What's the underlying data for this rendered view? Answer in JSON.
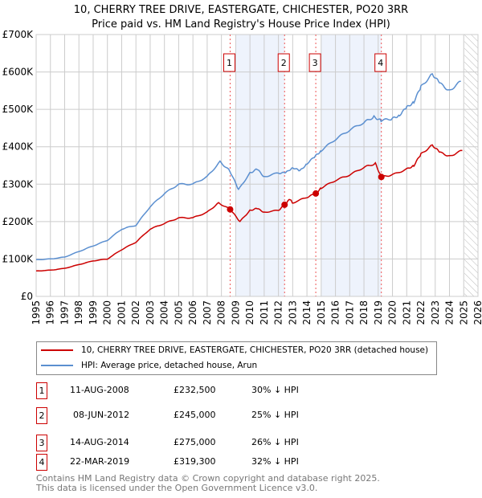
{
  "chart_data": {
    "type": "line",
    "title": "10, CHERRY TREE DRIVE, EASTERGATE, CHICHESTER, PO20 3RR",
    "subtitle": "Price paid vs. HM Land Registry's House Price Index (HPI)",
    "xlim": [
      1995,
      2026
    ],
    "ylim": [
      0,
      700000
    ],
    "x_ticks": [
      "1995",
      "1996",
      "1997",
      "1998",
      "1999",
      "2000",
      "2001",
      "2002",
      "2003",
      "2004",
      "2005",
      "2006",
      "2007",
      "2008",
      "2009",
      "2010",
      "2011",
      "2012",
      "2013",
      "2014",
      "2015",
      "2016",
      "2017",
      "2018",
      "2019",
      "2020",
      "2021",
      "2022",
      "2023",
      "2024",
      "2025",
      "2026"
    ],
    "y_ticks": [
      {
        "v": 0,
        "label": "£0"
      },
      {
        "v": 100000,
        "label": "£100K"
      },
      {
        "v": 200000,
        "label": "£200K"
      },
      {
        "v": 300000,
        "label": "£300K"
      },
      {
        "v": 400000,
        "label": "£400K"
      },
      {
        "v": 500000,
        "label": "£500K"
      },
      {
        "v": 600000,
        "label": "£600K"
      },
      {
        "v": 700000,
        "label": "£700K"
      }
    ],
    "grid": true,
    "series": [
      {
        "name": "10, CHERRY TREE DRIVE, EASTERGATE, CHICHESTER, PO20 3RR (detached house)",
        "color": "#cc0000",
        "points": [
          [
            1995,
            68000
          ],
          [
            1996,
            70000
          ],
          [
            1997,
            75000
          ],
          [
            1998,
            85000
          ],
          [
            1999,
            95000
          ],
          [
            2000,
            100000
          ],
          [
            2001,
            125000
          ],
          [
            2002,
            145000
          ],
          [
            2003,
            180000
          ],
          [
            2004,
            195000
          ],
          [
            2005,
            210000
          ],
          [
            2006,
            210000
          ],
          [
            2007,
            225000
          ],
          [
            2007.8,
            250000
          ],
          [
            2008.61,
            232500
          ],
          [
            2009.3,
            200000
          ],
          [
            2010,
            230000
          ],
          [
            2010.5,
            235000
          ],
          [
            2011,
            225000
          ],
          [
            2012,
            230000
          ],
          [
            2012.43,
            245000
          ],
          [
            2012.8,
            260000
          ],
          [
            2013,
            250000
          ],
          [
            2014,
            265000
          ],
          [
            2014.62,
            275000
          ],
          [
            2015,
            290000
          ],
          [
            2016,
            310000
          ],
          [
            2017,
            325000
          ],
          [
            2018,
            345000
          ],
          [
            2018.8,
            355000
          ],
          [
            2019.22,
            319300
          ],
          [
            2020,
            325000
          ],
          [
            2021,
            340000
          ],
          [
            2021.5,
            350000
          ],
          [
            2022,
            380000
          ],
          [
            2022.8,
            405000
          ],
          [
            2023.3,
            385000
          ],
          [
            2024,
            375000
          ],
          [
            2024.9,
            390000
          ]
        ]
      },
      {
        "name": "HPI: Average price, detached house, Arun",
        "color": "#5b8fd0",
        "points": [
          [
            1995,
            98000
          ],
          [
            1996,
            100000
          ],
          [
            1997,
            105000
          ],
          [
            1998,
            120000
          ],
          [
            1999,
            135000
          ],
          [
            2000,
            150000
          ],
          [
            2001,
            180000
          ],
          [
            2002,
            190000
          ],
          [
            2003,
            240000
          ],
          [
            2004,
            275000
          ],
          [
            2005,
            300000
          ],
          [
            2006,
            300000
          ],
          [
            2007,
            320000
          ],
          [
            2007.9,
            360000
          ],
          [
            2008.6,
            335000
          ],
          [
            2009.2,
            285000
          ],
          [
            2010,
            330000
          ],
          [
            2010.5,
            340000
          ],
          [
            2011,
            320000
          ],
          [
            2012,
            330000
          ],
          [
            2012.5,
            330000
          ],
          [
            2013,
            345000
          ],
          [
            2013.5,
            335000
          ],
          [
            2014,
            355000
          ],
          [
            2014.6,
            375000
          ],
          [
            2015,
            390000
          ],
          [
            2016,
            420000
          ],
          [
            2017,
            445000
          ],
          [
            2018,
            465000
          ],
          [
            2018.7,
            480000
          ],
          [
            2019.2,
            470000
          ],
          [
            2020,
            475000
          ],
          [
            2020.5,
            485000
          ],
          [
            2021,
            505000
          ],
          [
            2021.5,
            520000
          ],
          [
            2022,
            560000
          ],
          [
            2022.8,
            595000
          ],
          [
            2023.3,
            570000
          ],
          [
            2024,
            550000
          ],
          [
            2024.8,
            575000
          ]
        ]
      }
    ],
    "sales": [
      {
        "n": "1",
        "x": 2008.61,
        "date": "11-AUG-2008",
        "price": "£232,500",
        "value": 232500,
        "hpi": "30% ↓ HPI"
      },
      {
        "n": "2",
        "x": 2012.43,
        "date": "08-JUN-2012",
        "price": "£245,000",
        "value": 245000,
        "hpi": "25% ↓ HPI"
      },
      {
        "n": "3",
        "x": 2014.62,
        "date": "14-AUG-2014",
        "price": "£275,000",
        "value": 275000,
        "hpi": "26% ↓ HPI"
      },
      {
        "n": "4",
        "x": 2019.22,
        "date": "22-MAR-2019",
        "price": "£319,300",
        "value": 319300,
        "hpi": "32% ↓ HPI"
      }
    ],
    "shaded": [
      [
        2009,
        2012.43
      ],
      [
        2015,
        2019.22
      ]
    ],
    "forecast_from": 2025.05
  },
  "legend": {
    "red": "10, CHERRY TREE DRIVE, EASTERGATE, CHICHESTER, PO20 3RR (detached house)",
    "blue": "HPI: Average price, detached house, Arun"
  },
  "footer": {
    "line1": "Contains HM Land Registry data © Crown copyright and database right 2025.",
    "line2": "This data is licensed under the Open Government Licence v3.0."
  }
}
